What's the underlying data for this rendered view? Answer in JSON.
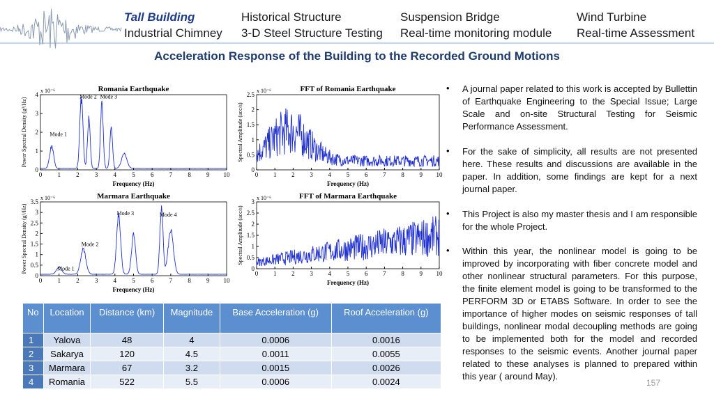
{
  "nav": {
    "items": [
      "Tall Building",
      "Historical Structure",
      "Suspension Bridge",
      "Wind Turbine",
      "Industrial Chimney",
      "3-D Steel Structure Testing",
      "Real-time monitoring module",
      "Real-time Assessment"
    ]
  },
  "title": "Acceleration Response of the Building to the Recorded Ground Motions",
  "figures": [
    {
      "title": "Romania Earthquake",
      "scale": "x 10⁻⁶",
      "xlabel": "Frequency (Hz)",
      "ylabel": "Power Spectral Density (g²/Hz)",
      "xticks": [
        0,
        1,
        2,
        3,
        4,
        5,
        6,
        7,
        8,
        9,
        10
      ],
      "yticks": [
        0,
        1,
        2,
        3,
        4
      ],
      "annotations": [
        "Mode 1",
        "Mode 2",
        "Mode 3"
      ]
    },
    {
      "title": "FFT of Romania Earthquake",
      "scale": "x 10⁻⁶",
      "xlabel": "Frequency (Hz)",
      "ylabel": "Spectral Amplitude (acc/s)",
      "xticks": [
        0,
        1,
        2,
        3,
        4,
        5,
        6,
        7,
        8,
        9,
        10
      ],
      "yticks": [
        0,
        0.5,
        1,
        1.5,
        2,
        2.5
      ],
      "annotations": []
    },
    {
      "title": "Marmara Earthquake",
      "scale": "x 10⁻⁶",
      "xlabel": "Frequency (Hz)",
      "ylabel": "Power Spectral Density (g²/Hz)",
      "xticks": [
        0,
        1,
        2,
        3,
        4,
        5,
        6,
        7,
        8,
        9,
        10
      ],
      "yticks": [
        0,
        0.5,
        1,
        1.5,
        2,
        2.5,
        3,
        3.5
      ],
      "annotations": [
        "Mode 1",
        "Mode 2",
        "Mode 3",
        "Mode 4"
      ]
    },
    {
      "title": "FFT of Marmara Earthquake",
      "scale": "x 10⁻⁶",
      "xlabel": "Frequency (Hz)",
      "ylabel": "Spectral Amplitude (acc/s)",
      "xticks": [
        0,
        1,
        2,
        3,
        4,
        5,
        6,
        7,
        8,
        9,
        10
      ],
      "yticks": [
        0,
        0.5,
        1,
        1.5,
        2,
        2.5,
        3
      ],
      "annotations": []
    }
  ],
  "table": {
    "header": [
      "No",
      "Location",
      "Distance (km)",
      "Magnitude",
      "Base Acceleration (g)",
      "Roof Acceleration (g)"
    ],
    "rows": [
      [
        "1",
        "Yalova",
        "48",
        "4",
        "0.0006",
        "0.0016"
      ],
      [
        "2",
        "Sakarya",
        "120",
        "4.5",
        "0.0011",
        "0.0055"
      ],
      [
        "3",
        "Marmara",
        "67",
        "3.2",
        "0.0015",
        "0.0026"
      ],
      [
        "4",
        "Romania",
        "522",
        "5.5",
        "0.0006",
        "0.0024"
      ]
    ]
  },
  "bullets": [
    "A journal paper related to this work is accepted by Bullettin of Earthquake Engineering to the Special Issue; Large Scale and on-site Structural Testing for Seismic Performance Assessment.",
    "For the sake of simplicity, all results are not presented here. These results and discussions are available in the paper. In addition, some findings are kept for a next journal paper.",
    "This Project is also my master thesis and I am responsible for the whole Project.",
    "Within this year, the nonlinear model is going to be improved by incorporating with fiber concrete model and other nonlinear structural parameters. For this purpose, the finite element model is going to be transformed to the PERFORM 3D or ETABS Software. In order to see the importance of higher modes on seismic responses of tall buildings, nonlinear modal decoupling methods are going to be implemented both for the model and recorded responses to the seismic events. Another journal paper related to these analyses is planned to prepared within this year ( around May)."
  ],
  "page_number": "157"
}
